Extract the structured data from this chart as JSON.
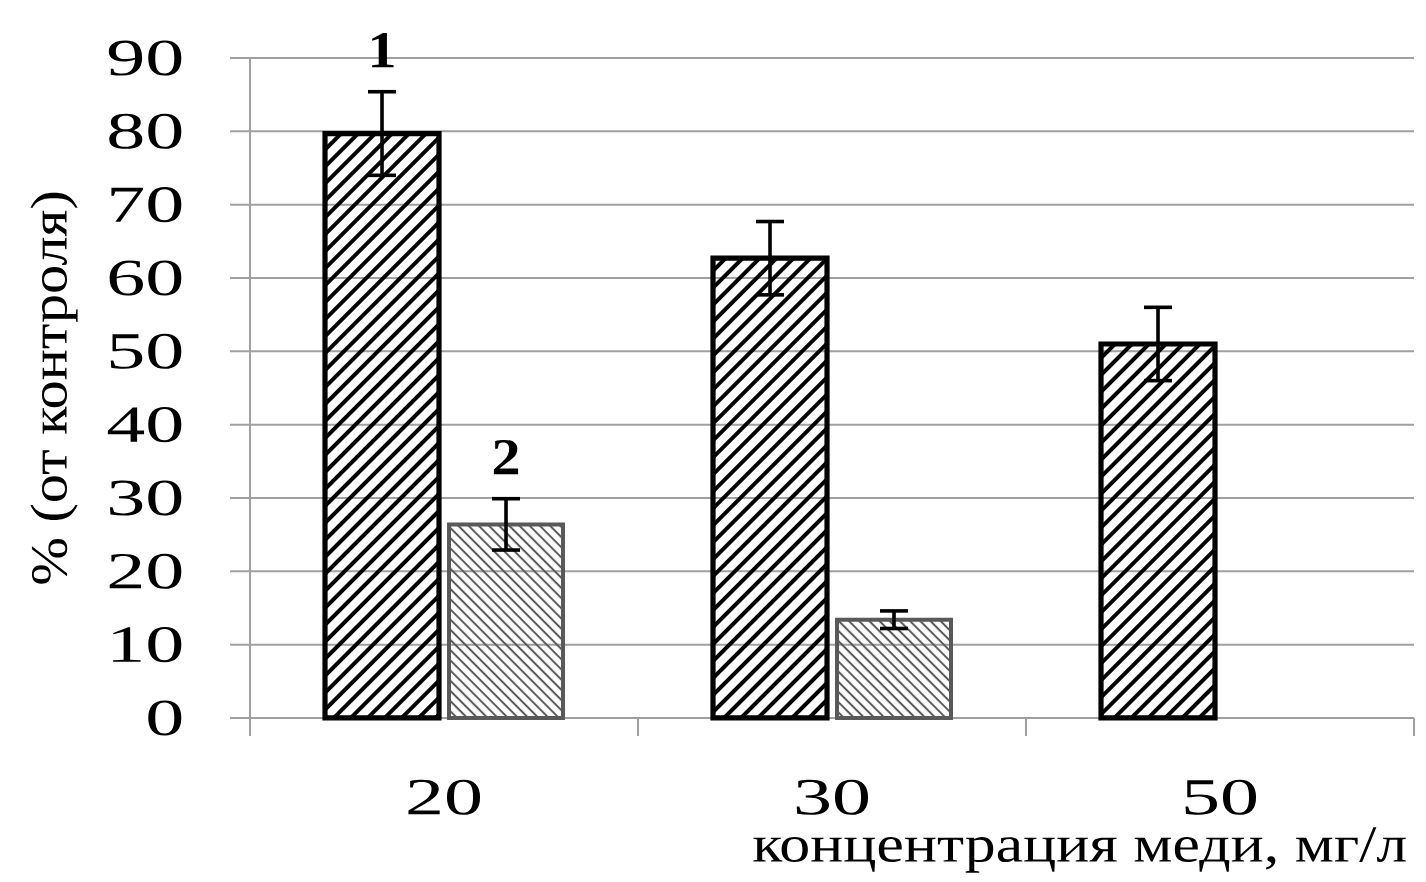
{
  "chart_data": {
    "type": "bar",
    "categories": [
      "20",
      "30",
      "50"
    ],
    "xlabel": "концентрация меди, мг/л",
    "ylabel": "% (от контроля)",
    "ylim": [
      0,
      90
    ],
    "yticks": [
      0,
      10,
      20,
      30,
      40,
      50,
      60,
      70,
      80,
      90
    ],
    "grid": "y",
    "series": [
      {
        "name": "1",
        "color": "#000000",
        "values": [
          79.7,
          62.7,
          51
        ],
        "errors": [
          5.7,
          5,
          5
        ]
      },
      {
        "name": "2",
        "color": "#595959",
        "values": [
          26.4,
          13.4,
          null
        ],
        "errors": [
          3.5,
          1.2,
          null
        ]
      }
    ]
  }
}
